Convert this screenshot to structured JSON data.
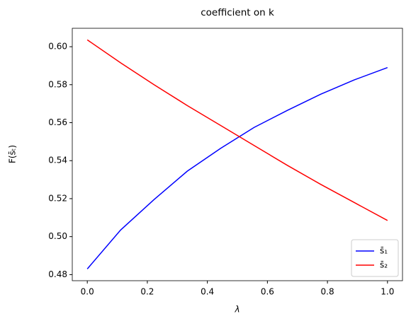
{
  "chart_data": {
    "type": "line",
    "title": "coefficient on k",
    "xlabel": "λ",
    "ylabel": "F(s̄ₜ)",
    "x": [
      0,
      0.1111,
      0.2222,
      0.3333,
      0.4444,
      0.5556,
      0.6667,
      0.7778,
      0.8889,
      1.0
    ],
    "series": [
      {
        "name": "s̄₁",
        "color": "#0000ff",
        "values": [
          0.483,
          0.5035,
          0.5195,
          0.5345,
          0.5465,
          0.5575,
          0.5665,
          0.575,
          0.5825,
          0.589
        ]
      },
      {
        "name": "s̄₂",
        "color": "#ff0000",
        "values": [
          0.6036,
          0.5915,
          0.58,
          0.569,
          0.5585,
          0.548,
          0.5375,
          0.5275,
          0.518,
          0.5085
        ]
      }
    ],
    "xlim": [
      -0.05,
      1.05
    ],
    "xticks": [
      {
        "value": 0,
        "label": "0.0"
      },
      0.2,
      0.4,
      0.6,
      0.8,
      {
        "value": 1,
        "label": "1.0"
      }
    ],
    "ylim": [
      0.4768,
      0.6097
    ],
    "yticks": [
      0.48,
      {
        "value": 0.5,
        "label": "0.50"
      },
      0.52,
      0.54,
      0.56,
      0.58,
      {
        "value": 0.6,
        "label": "0.60"
      }
    ],
    "grid": false,
    "legend": "lower right"
  }
}
